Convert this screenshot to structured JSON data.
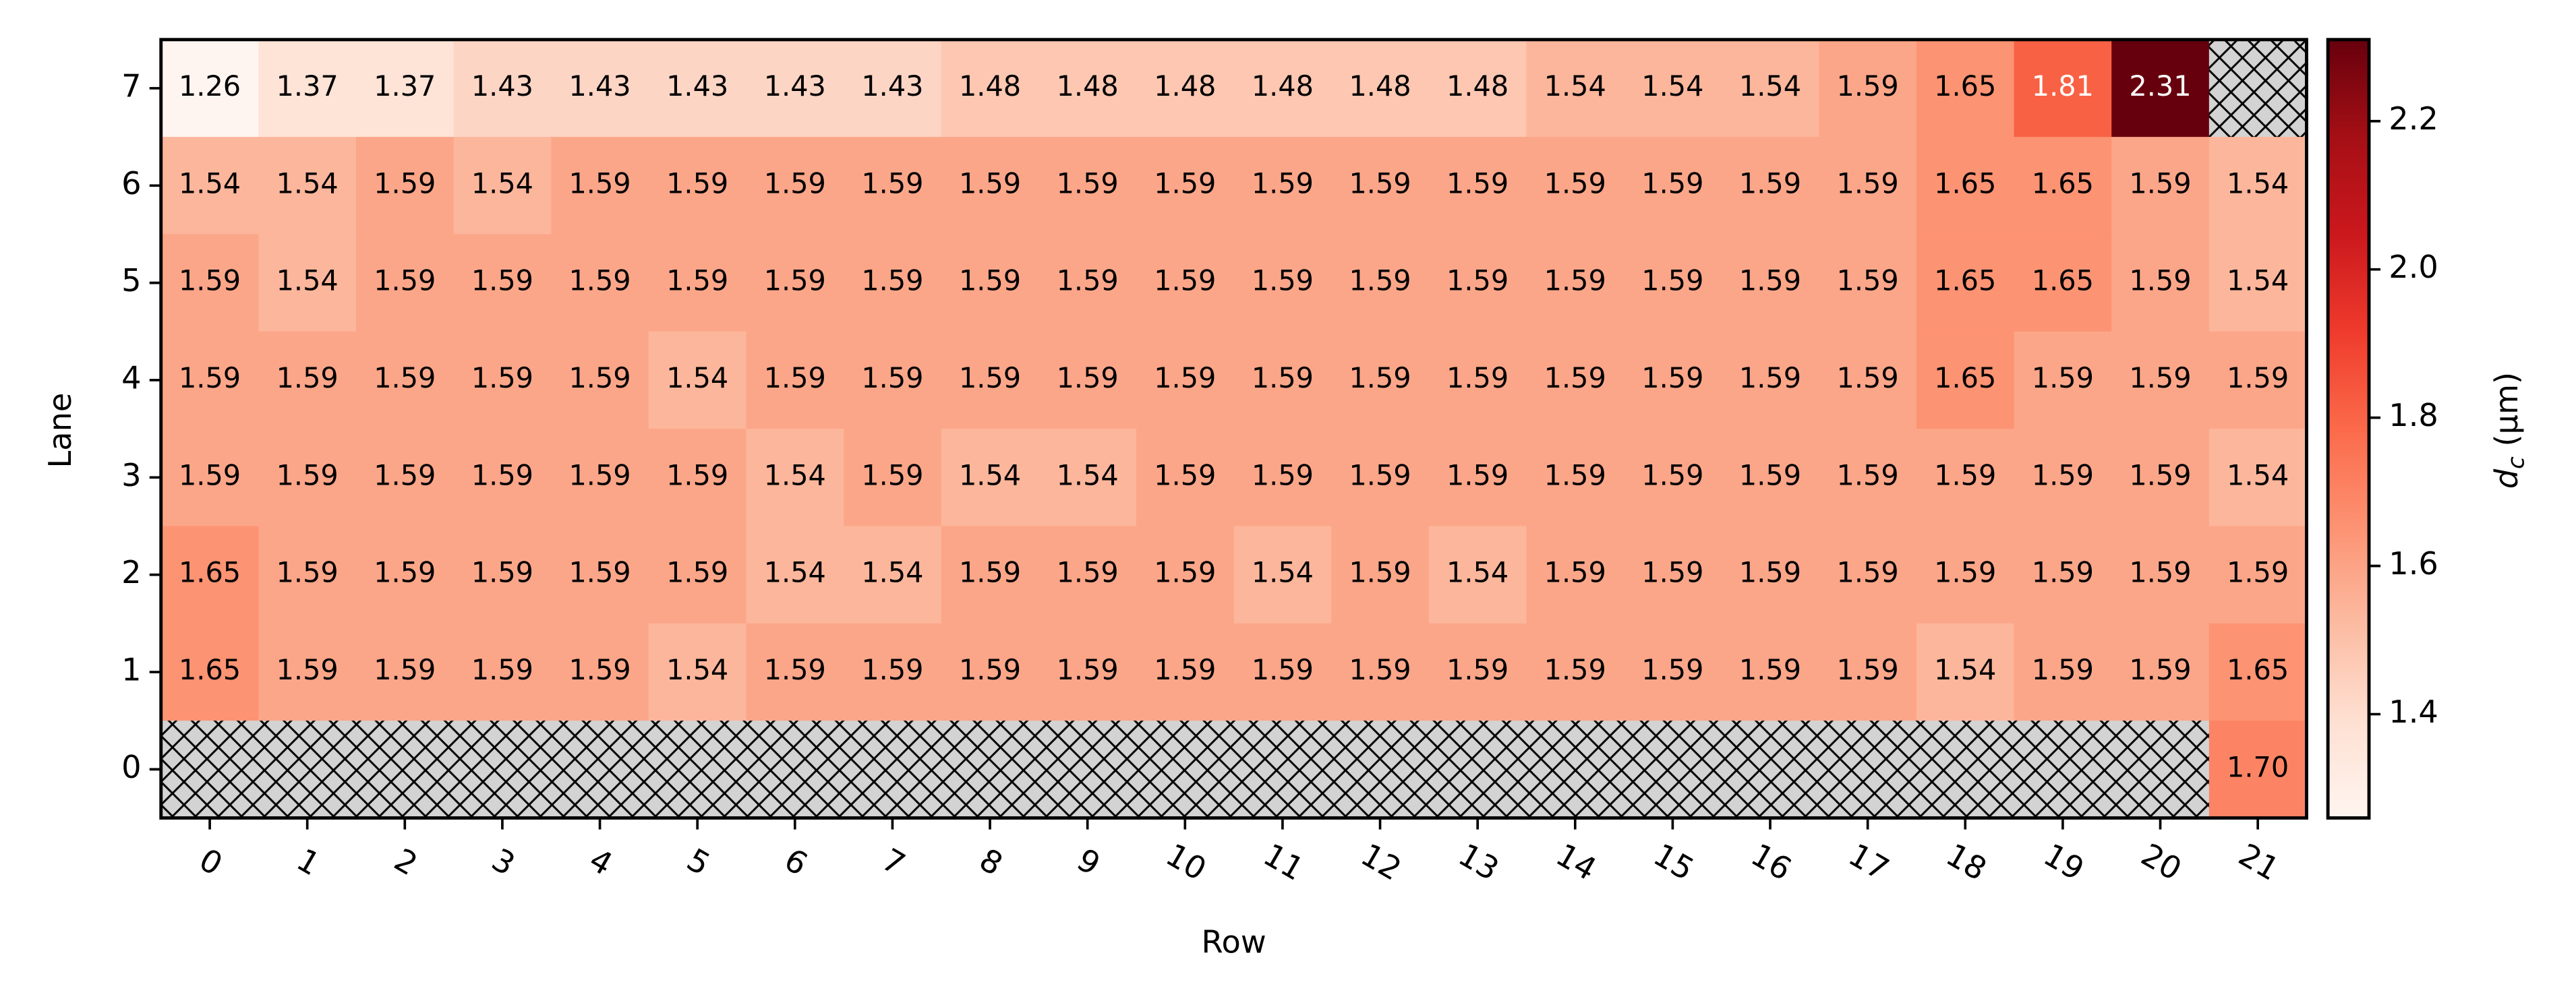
{
  "chart_data": {
    "type": "heatmap",
    "x_label": "Row",
    "y_label": "Lane",
    "x_categories": [
      "0",
      "1",
      "2",
      "3",
      "4",
      "5",
      "6",
      "7",
      "8",
      "9",
      "10",
      "11",
      "12",
      "13",
      "14",
      "15",
      "16",
      "17",
      "18",
      "19",
      "20",
      "21"
    ],
    "y_categories": [
      "7",
      "6",
      "5",
      "4",
      "3",
      "2",
      "1",
      "0"
    ],
    "values": [
      [
        1.26,
        1.37,
        1.37,
        1.43,
        1.43,
        1.43,
        1.43,
        1.43,
        1.48,
        1.48,
        1.48,
        1.48,
        1.48,
        1.48,
        1.54,
        1.54,
        1.54,
        1.59,
        1.65,
        1.81,
        2.31,
        null
      ],
      [
        1.54,
        1.54,
        1.59,
        1.54,
        1.59,
        1.59,
        1.59,
        1.59,
        1.59,
        1.59,
        1.59,
        1.59,
        1.59,
        1.59,
        1.59,
        1.59,
        1.59,
        1.59,
        1.65,
        1.65,
        1.59,
        1.54
      ],
      [
        1.59,
        1.54,
        1.59,
        1.59,
        1.59,
        1.59,
        1.59,
        1.59,
        1.59,
        1.59,
        1.59,
        1.59,
        1.59,
        1.59,
        1.59,
        1.59,
        1.59,
        1.59,
        1.65,
        1.65,
        1.59,
        1.54
      ],
      [
        1.59,
        1.59,
        1.59,
        1.59,
        1.59,
        1.54,
        1.59,
        1.59,
        1.59,
        1.59,
        1.59,
        1.59,
        1.59,
        1.59,
        1.59,
        1.59,
        1.59,
        1.59,
        1.65,
        1.59,
        1.59,
        1.59
      ],
      [
        1.59,
        1.59,
        1.59,
        1.59,
        1.59,
        1.59,
        1.54,
        1.59,
        1.54,
        1.54,
        1.59,
        1.59,
        1.59,
        1.59,
        1.59,
        1.59,
        1.59,
        1.59,
        1.59,
        1.59,
        1.59,
        1.54
      ],
      [
        1.65,
        1.59,
        1.59,
        1.59,
        1.59,
        1.59,
        1.54,
        1.54,
        1.59,
        1.59,
        1.59,
        1.54,
        1.59,
        1.54,
        1.59,
        1.59,
        1.59,
        1.59,
        1.59,
        1.59,
        1.59,
        1.59
      ],
      [
        1.65,
        1.59,
        1.59,
        1.59,
        1.59,
        1.54,
        1.59,
        1.59,
        1.59,
        1.59,
        1.59,
        1.59,
        1.59,
        1.59,
        1.59,
        1.59,
        1.59,
        1.59,
        1.54,
        1.59,
        1.59,
        1.65
      ],
      [
        null,
        null,
        null,
        null,
        null,
        null,
        null,
        null,
        null,
        null,
        null,
        null,
        null,
        null,
        null,
        null,
        null,
        null,
        null,
        null,
        null,
        1.7
      ]
    ],
    "value_labels": [
      [
        "1.26",
        "1.37",
        "1.37",
        "1.43",
        "1.43",
        "1.43",
        "1.43",
        "1.43",
        "1.48",
        "1.48",
        "1.48",
        "1.48",
        "1.48",
        "1.48",
        "1.54",
        "1.54",
        "1.54",
        "1.59",
        "1.65",
        "1.81",
        "2.31",
        null
      ],
      [
        "1.54",
        "1.54",
        "1.59",
        "1.54",
        "1.59",
        "1.59",
        "1.59",
        "1.59",
        "1.59",
        "1.59",
        "1.59",
        "1.59",
        "1.59",
        "1.59",
        "1.59",
        "1.59",
        "1.59",
        "1.59",
        "1.65",
        "1.65",
        "1.59",
        "1.54"
      ],
      [
        "1.59",
        "1.54",
        "1.59",
        "1.59",
        "1.59",
        "1.59",
        "1.59",
        "1.59",
        "1.59",
        "1.59",
        "1.59",
        "1.59",
        "1.59",
        "1.59",
        "1.59",
        "1.59",
        "1.59",
        "1.59",
        "1.65",
        "1.65",
        "1.59",
        "1.54"
      ],
      [
        "1.59",
        "1.59",
        "1.59",
        "1.59",
        "1.59",
        "1.54",
        "1.59",
        "1.59",
        "1.59",
        "1.59",
        "1.59",
        "1.59",
        "1.59",
        "1.59",
        "1.59",
        "1.59",
        "1.59",
        "1.59",
        "1.65",
        "1.59",
        "1.59",
        "1.59"
      ],
      [
        "1.59",
        "1.59",
        "1.59",
        "1.59",
        "1.59",
        "1.59",
        "1.54",
        "1.59",
        "1.54",
        "1.54",
        "1.59",
        "1.59",
        "1.59",
        "1.59",
        "1.59",
        "1.59",
        "1.59",
        "1.59",
        "1.59",
        "1.59",
        "1.59",
        "1.54"
      ],
      [
        "1.65",
        "1.59",
        "1.59",
        "1.59",
        "1.59",
        "1.59",
        "1.54",
        "1.54",
        "1.59",
        "1.59",
        "1.59",
        "1.54",
        "1.59",
        "1.54",
        "1.59",
        "1.59",
        "1.59",
        "1.59",
        "1.59",
        "1.59",
        "1.59",
        "1.59"
      ],
      [
        "1.65",
        "1.59",
        "1.59",
        "1.59",
        "1.59",
        "1.54",
        "1.59",
        "1.59",
        "1.59",
        "1.59",
        "1.59",
        "1.59",
        "1.59",
        "1.59",
        "1.59",
        "1.59",
        "1.59",
        "1.59",
        "1.54",
        "1.59",
        "1.59",
        "1.65"
      ],
      [
        null,
        null,
        null,
        null,
        null,
        null,
        null,
        null,
        null,
        null,
        null,
        null,
        null,
        null,
        null,
        null,
        null,
        null,
        null,
        null,
        null,
        "1.70"
      ]
    ],
    "colorbar_label": [
      "d",
      "c",
      "(μm)"
    ],
    "clim": [
      1.26,
      2.31
    ],
    "cticks": [
      1.4,
      1.6,
      1.8,
      {
        "value": 2,
        "label": "2.0"
      },
      2.2
    ],
    "colormap": [
      "#fff5f0",
      "#fee0d2",
      "#fcbba1",
      "#fc9272",
      "#fb6a4a",
      "#ef3b2c",
      "#cb181d",
      "#a50f15",
      "#67000d"
    ],
    "missing_color": "#d3d3d3"
  }
}
